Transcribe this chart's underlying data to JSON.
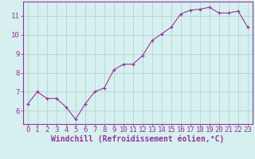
{
  "x": [
    0,
    1,
    2,
    3,
    4,
    5,
    6,
    7,
    8,
    9,
    10,
    11,
    12,
    13,
    14,
    15,
    16,
    17,
    18,
    19,
    20,
    21,
    22,
    23
  ],
  "y": [
    6.35,
    7.0,
    6.65,
    6.65,
    6.2,
    5.55,
    6.35,
    7.0,
    7.2,
    8.15,
    8.45,
    8.45,
    8.9,
    9.7,
    10.05,
    10.4,
    11.1,
    11.3,
    11.35,
    11.45,
    11.15,
    11.15,
    11.25,
    10.4
  ],
  "xlim": [
    -0.5,
    23.5
  ],
  "ylim": [
    5.3,
    11.75
  ],
  "yticks": [
    6,
    7,
    8,
    9,
    10,
    11
  ],
  "xticks": [
    0,
    1,
    2,
    3,
    4,
    5,
    6,
    7,
    8,
    9,
    10,
    11,
    12,
    13,
    14,
    15,
    16,
    17,
    18,
    19,
    20,
    21,
    22,
    23
  ],
  "xlabel": "Windchill (Refroidissement éolien,°C)",
  "line_color": "#993399",
  "marker_color": "#993399",
  "bg_color": "#d6f0f0",
  "grid_color": "#b0cccc",
  "axis_color": "#993399",
  "tick_color": "#993399",
  "label_color": "#993399",
  "tick_fontsize": 6.5,
  "xlabel_fontsize": 7.0
}
